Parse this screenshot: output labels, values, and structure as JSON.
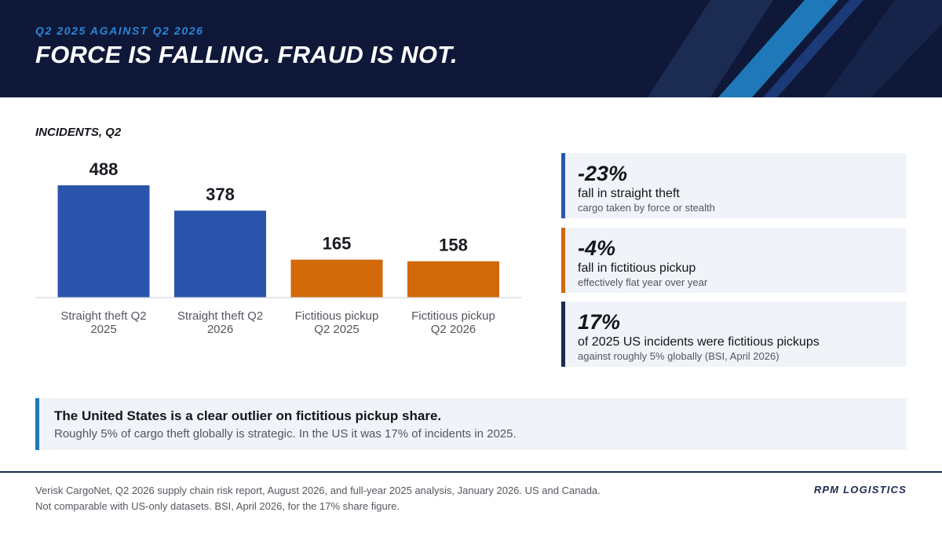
{
  "header": {
    "kicker": "Q2 2025 AGAINST Q2 2026",
    "headline": "FORCE IS FALLING. FRAUD IS NOT."
  },
  "chart_data": {
    "type": "bar",
    "title": "INCIDENTS, Q2",
    "categories": [
      "Straight theft Q2 2025",
      "Straight theft Q2 2026",
      "Fictitious pickup Q2 2025",
      "Fictitious pickup Q2 2026"
    ],
    "category_lines": [
      [
        "Straight theft Q2",
        "2025"
      ],
      [
        "Straight theft Q2",
        "2026"
      ],
      [
        "Fictitious pickup",
        "Q2 2025"
      ],
      [
        "Fictitious pickup",
        "Q2 2026"
      ]
    ],
    "values": [
      488,
      378,
      165,
      158
    ],
    "value_labels": [
      "488",
      "378",
      "165",
      "158"
    ],
    "bar_colors": [
      "#2b55ad",
      "#2b55ad",
      "#d2690a",
      "#d2690a"
    ],
    "ylim": [
      0,
      488
    ],
    "grid": false,
    "legend": "none"
  },
  "stats": [
    {
      "value": "-23%",
      "label": "fall in straight theft",
      "sub": "cargo taken by force or stealth",
      "accent": "#2b55ad"
    },
    {
      "value": "-4%",
      "label": "fall in fictitious pickup",
      "sub": "effectively flat year over year",
      "accent": "#d2690a"
    },
    {
      "value": "17%",
      "label": "of 2025 US incidents were fictitious pickups",
      "sub": "against roughly 5% globally (BSI, April 2026)",
      "accent": "#1c2b52"
    }
  ],
  "callout": {
    "title": "The United States is a clear outlier on fictitious pickup share.",
    "body": "Roughly 5% of cargo theft globally is strategic. In the US it was 17% of incidents in 2025."
  },
  "footer": {
    "source": "Verisk CargoNet, Q2 2026 supply chain risk report, August 2026, and full-year 2025 analysis, January 2026. US and Canada. Not comparable with US-only datasets. BSI, April 2026, for the 17% share figure.",
    "brand": "RPM LOGISTICS"
  },
  "colors": {
    "navy": "#0f1838",
    "accent_blue": "#2a86d6",
    "theft_blue": "#2b55ad",
    "pickup_orange": "#d2690a"
  }
}
